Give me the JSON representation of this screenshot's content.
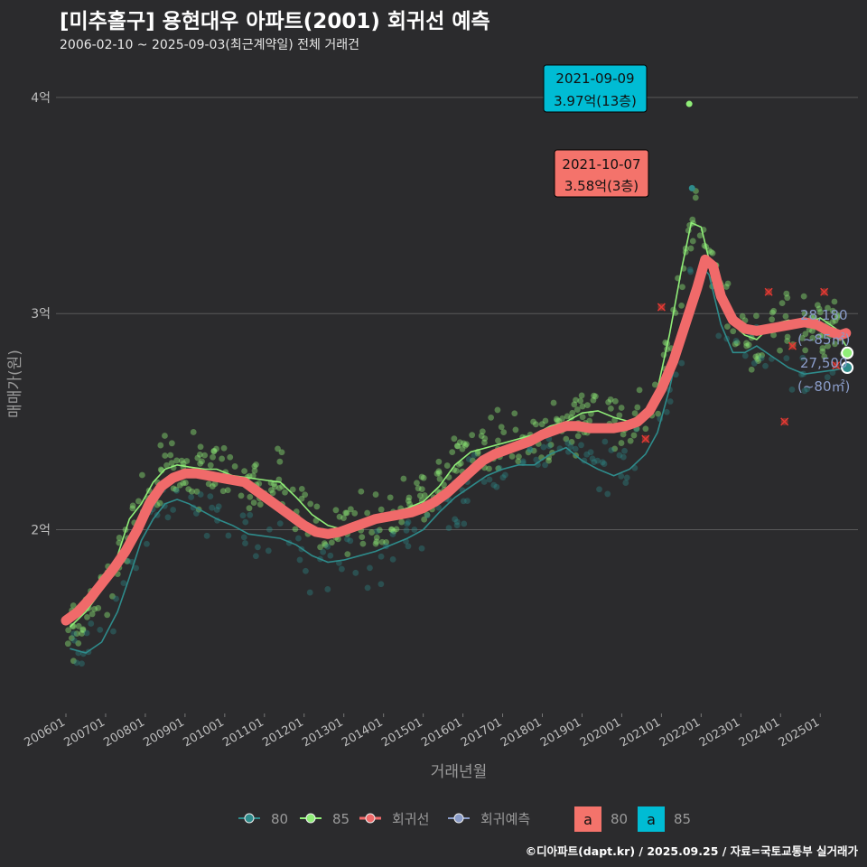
{
  "title": "[미추홀구] 용현대우 아파트(2001) 회귀선 예측",
  "subtitle": "2006-02-10 ~ 2025-09-03(최근계약일) 전체 거래건",
  "credit": "©디아파트(dapt.kr) / 2025.09.25 / 자료=국토교통부 실거래가",
  "colors": {
    "background": "#2b2b2d",
    "area80": "#2e8b8b",
    "area85": "#90ee78",
    "regression": "#f06a6a",
    "forecast": "#8a9cc8",
    "label80_bg": "#f4736b",
    "label85_bg": "#00bcd4",
    "gridline": "#5a5a5a"
  },
  "annotations": {
    "max85": {
      "date": "2021-09-09",
      "price": "3.97억(13층)"
    },
    "max80": {
      "date": "2021-10-07",
      "price": "3.58억(3층)"
    },
    "latest85": {
      "value": "28,180",
      "size": "(~85㎡)"
    },
    "latest80": {
      "value": "27,500",
      "size": "(~80㎡)"
    }
  },
  "legend": {
    "items": [
      {
        "label": "80",
        "icon": "teal-line-dot-icon"
      },
      {
        "label": "85",
        "icon": "green-line-dot-icon"
      },
      {
        "label": "회귀선",
        "icon": "red-line-dot-icon"
      },
      {
        "label": "회귀예측",
        "icon": "blue-line-dot-icon"
      }
    ],
    "label_boxes": [
      {
        "glyph": "a",
        "label": "80"
      },
      {
        "glyph": "a",
        "label": "85"
      }
    ]
  },
  "chart_data": {
    "type": "line",
    "xlabel": "거래년월",
    "ylabel": "매매가(원)",
    "ylim": [
      1.15,
      4.2
    ],
    "xlim": [
      2005.75,
      2025.95
    ],
    "y_ticks": [
      {
        "v": 2,
        "label": "2억"
      },
      {
        "v": 3,
        "label": "3억"
      },
      {
        "v": 4,
        "label": "4억"
      }
    ],
    "x_ticks": [
      "200601",
      "200701",
      "200801",
      "200901",
      "201001",
      "201101",
      "201201",
      "201301",
      "201401",
      "201501",
      "201601",
      "201701",
      "201801",
      "201901",
      "202001",
      "202101",
      "202201",
      "202301",
      "202401",
      "202501"
    ],
    "grid": "horizontal",
    "legend_position": "bottom",
    "series": [
      {
        "key": "area85",
        "x": [
          2006.1,
          2006.5,
          2006.9,
          2007.3,
          2007.6,
          2007.9,
          2008.2,
          2008.5,
          2008.8,
          2009.1,
          2009.5,
          2009.8,
          2010.2,
          2010.6,
          2011.0,
          2011.4,
          2011.8,
          2012.2,
          2012.6,
          2013.0,
          2013.4,
          2013.8,
          2014.2,
          2014.6,
          2015.0,
          2015.4,
          2015.8,
          2016.2,
          2016.6,
          2017.0,
          2017.4,
          2017.8,
          2018.2,
          2018.6,
          2019.0,
          2019.4,
          2019.8,
          2020.2,
          2020.6,
          2020.9,
          2021.2,
          2021.5,
          2021.75,
          2022.0,
          2022.2,
          2022.5,
          2022.8,
          2023.1,
          2023.4,
          2023.8,
          2024.2,
          2024.6,
          2025.0,
          2025.4,
          2025.65
        ],
        "y": [
          1.55,
          1.62,
          1.72,
          1.88,
          2.05,
          2.12,
          2.22,
          2.28,
          2.3,
          2.29,
          2.28,
          2.28,
          2.25,
          2.24,
          2.23,
          2.22,
          2.15,
          2.07,
          2.02,
          2.0,
          2.02,
          2.05,
          2.08,
          2.1,
          2.13,
          2.2,
          2.3,
          2.36,
          2.38,
          2.4,
          2.42,
          2.44,
          2.48,
          2.5,
          2.54,
          2.55,
          2.52,
          2.5,
          2.55,
          2.65,
          2.9,
          3.2,
          3.42,
          3.4,
          3.25,
          3.08,
          2.95,
          2.9,
          2.88,
          2.95,
          2.97,
          2.95,
          2.98,
          2.93,
          2.85
        ]
      },
      {
        "key": "area80",
        "x": [
          2006.1,
          2006.5,
          2006.9,
          2007.3,
          2007.6,
          2007.9,
          2008.2,
          2008.5,
          2008.8,
          2009.1,
          2009.5,
          2009.8,
          2010.2,
          2010.6,
          2011.0,
          2011.4,
          2011.8,
          2012.2,
          2012.6,
          2013.0,
          2013.4,
          2013.8,
          2014.2,
          2014.6,
          2015.0,
          2015.4,
          2015.8,
          2016.2,
          2016.6,
          2017.0,
          2017.4,
          2017.8,
          2018.2,
          2018.6,
          2019.0,
          2019.4,
          2019.8,
          2020.2,
          2020.6,
          2020.9,
          2021.2,
          2021.5,
          2021.75,
          2022.0,
          2022.2,
          2022.5,
          2022.8,
          2023.1,
          2023.4,
          2023.8,
          2024.2,
          2024.6,
          2025.0,
          2025.4,
          2025.65
        ],
        "y": [
          1.45,
          1.43,
          1.48,
          1.62,
          1.78,
          1.95,
          2.05,
          2.12,
          2.14,
          2.12,
          2.08,
          2.05,
          2.02,
          1.98,
          1.97,
          1.96,
          1.93,
          1.88,
          1.85,
          1.86,
          1.88,
          1.9,
          1.93,
          1.96,
          2.0,
          2.08,
          2.15,
          2.2,
          2.25,
          2.28,
          2.3,
          2.3,
          2.35,
          2.38,
          2.32,
          2.28,
          2.25,
          2.28,
          2.35,
          2.45,
          2.65,
          2.9,
          3.1,
          3.22,
          3.18,
          2.95,
          2.82,
          2.82,
          2.85,
          2.8,
          2.75,
          2.72,
          2.73,
          2.74,
          2.75
        ]
      },
      {
        "key": "regression",
        "x": [
          2006.0,
          2006.3,
          2006.6,
          2006.9,
          2007.2,
          2007.5,
          2007.8,
          2008.1,
          2008.4,
          2008.7,
          2009.0,
          2009.3,
          2009.6,
          2009.9,
          2010.2,
          2010.5,
          2010.8,
          2011.1,
          2011.4,
          2011.7,
          2012.0,
          2012.3,
          2012.6,
          2012.9,
          2013.2,
          2013.5,
          2013.8,
          2014.1,
          2014.4,
          2014.7,
          2015.0,
          2015.3,
          2015.6,
          2015.9,
          2016.2,
          2016.5,
          2016.8,
          2017.1,
          2017.4,
          2017.7,
          2018.0,
          2018.3,
          2018.6,
          2018.9,
          2019.2,
          2019.5,
          2019.8,
          2020.1,
          2020.4,
          2020.7,
          2021.0,
          2021.3,
          2021.6,
          2021.9,
          2022.1,
          2022.3,
          2022.5,
          2022.8,
          2023.1,
          2023.4,
          2023.7,
          2024.0,
          2024.3,
          2024.6,
          2024.9,
          2025.2,
          2025.5,
          2025.65
        ],
        "y": [
          1.58,
          1.62,
          1.68,
          1.75,
          1.82,
          1.9,
          2.0,
          2.12,
          2.2,
          2.24,
          2.26,
          2.26,
          2.25,
          2.24,
          2.23,
          2.22,
          2.18,
          2.14,
          2.1,
          2.06,
          2.02,
          1.99,
          1.98,
          1.99,
          2.01,
          2.03,
          2.05,
          2.06,
          2.07,
          2.08,
          2.1,
          2.13,
          2.17,
          2.22,
          2.27,
          2.32,
          2.35,
          2.37,
          2.39,
          2.41,
          2.44,
          2.46,
          2.48,
          2.48,
          2.47,
          2.47,
          2.47,
          2.48,
          2.5,
          2.55,
          2.65,
          2.78,
          2.95,
          3.12,
          3.25,
          3.22,
          3.08,
          2.97,
          2.93,
          2.92,
          2.93,
          2.94,
          2.95,
          2.96,
          2.95,
          2.92,
          2.9,
          2.91
        ]
      }
    ],
    "highlight_points": [
      {
        "series": "area85",
        "x": 2021.7,
        "y": 3.97
      },
      {
        "series": "area80",
        "x": 2021.77,
        "y": 3.58
      }
    ],
    "forecast_points": [
      {
        "series": "area85",
        "x": 2025.68,
        "y": 2.818
      },
      {
        "series": "area80",
        "x": 2025.68,
        "y": 2.75
      }
    ],
    "cancelled_points": [
      {
        "x": 2021.0,
        "y": 3.03
      },
      {
        "x": 2023.7,
        "y": 3.1
      },
      {
        "x": 2024.3,
        "y": 2.85
      },
      {
        "x": 2024.1,
        "y": 2.5
      },
      {
        "x": 2025.1,
        "y": 3.1
      },
      {
        "x": 2025.4,
        "y": 2.76
      },
      {
        "x": 2020.6,
        "y": 2.42
      }
    ]
  }
}
